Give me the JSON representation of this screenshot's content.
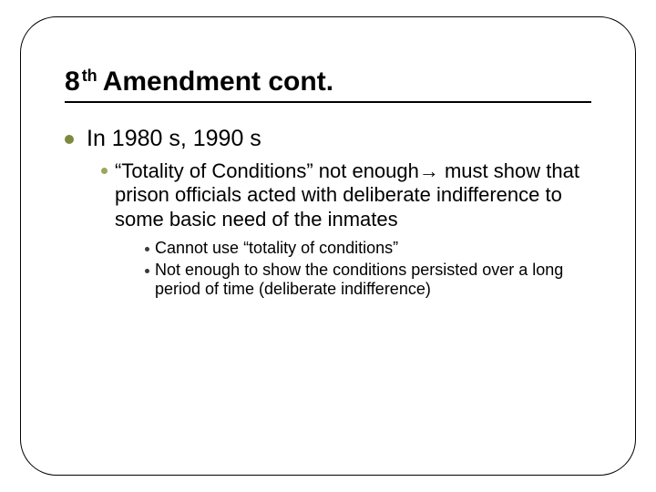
{
  "colors": {
    "frame_border": "#000000",
    "title_underline": "#000000",
    "text": "#000000",
    "bullet_lvl1": "#7b8a3e",
    "bullet_lvl2": "#9aa85a",
    "bullet_lvl3": "#3a3a3a",
    "background": "#ffffff"
  },
  "typography": {
    "title_fontsize": 30,
    "title_sup_fontsize": 18,
    "lvl1_fontsize": 25,
    "lvl2_fontsize": 22,
    "lvl3_fontsize": 18,
    "title_font": "Verdana",
    "body_font": "Arial"
  },
  "title": {
    "ordinal": "8",
    "suffix": "th",
    "rest": "Amendment cont."
  },
  "body": {
    "lvl1": "In 1980 s, 1990 s",
    "lvl2": "“Totality of Conditions” not enough→ must show that prison officials acted with deliberate indifference to some basic need of the inmates",
    "lvl3a": "Cannot use “totality of conditions”",
    "lvl3b": "Not enough to show the conditions persisted over a long period of time (deliberate indifference)"
  }
}
